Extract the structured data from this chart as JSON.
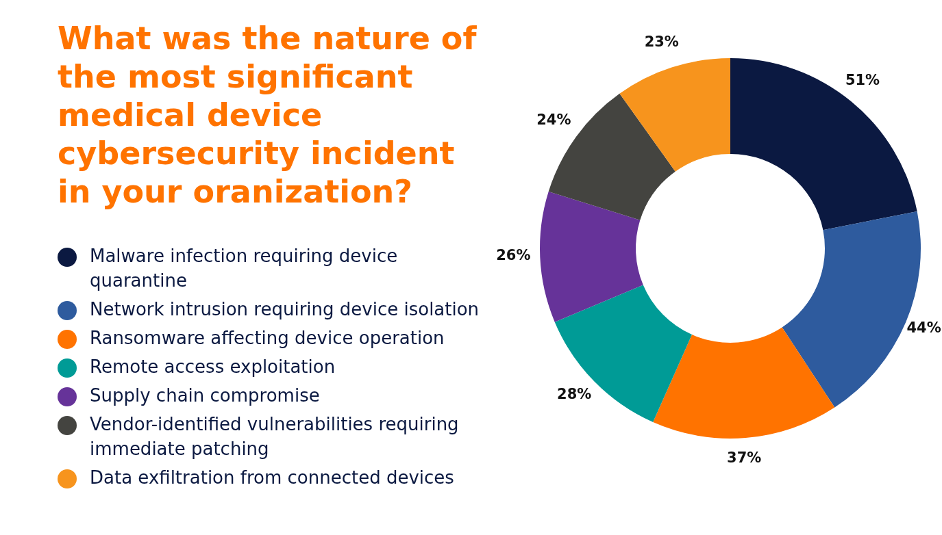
{
  "chart_data": {
    "type": "donut",
    "title": "What was the nature of the most significant medical device cybersecurity incident in your oranization?",
    "categories": [
      "Malware infection requiring device quarantine",
      "Network intrusion requiring device isolation",
      "Ransomware affecting device operation",
      "Remote access exploitation",
      "Supply chain compromise",
      "Vendor-identified vulnerabilities requiring immediate patching",
      "Data exfiltration from connected devices"
    ],
    "values": [
      51,
      44,
      37,
      28,
      26,
      24,
      23
    ],
    "colors": [
      "#0b1941",
      "#2e5b9e",
      "#ff7300",
      "#009b96",
      "#663399",
      "#444440",
      "#f7941d"
    ],
    "value_labels": [
      "51%",
      "44%",
      "37%",
      "28%",
      "26%",
      "24%",
      "23%"
    ],
    "legend": "left"
  }
}
